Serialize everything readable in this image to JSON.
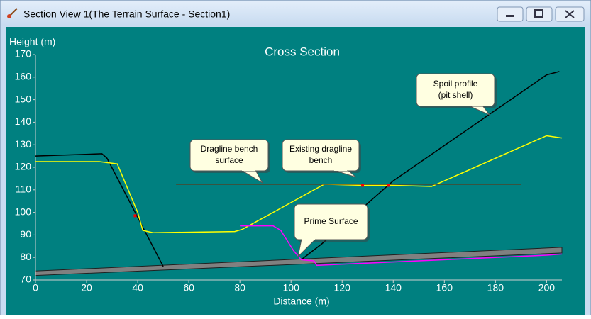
{
  "window": {
    "title": "Section View 1(The Terrain Surface - Section1)"
  },
  "chart_data": {
    "type": "line",
    "title": "Cross Section",
    "x_label": "Distance (m)",
    "y_label": "Height (m)",
    "xlim": [
      0,
      206
    ],
    "ylim": [
      70,
      170
    ],
    "xticks": [
      0,
      20,
      40,
      60,
      80,
      100,
      120,
      140,
      160,
      180,
      200
    ],
    "yticks": [
      70,
      80,
      90,
      100,
      110,
      120,
      130,
      140,
      150,
      160,
      170
    ],
    "band": {
      "color": "#808080",
      "x": [
        0,
        206
      ],
      "upper": [
        74,
        84.5
      ],
      "lower": [
        72,
        82
      ]
    },
    "series": [
      {
        "color": "#000000",
        "x": [
          0,
          26,
          28,
          50
        ],
        "values": [
          125,
          126,
          124,
          76
        ]
      },
      {
        "color": "#000000",
        "x": [
          104,
          112,
          140,
          200,
          205
        ],
        "values": [
          79,
          86,
          114,
          161,
          162.5
        ]
      },
      {
        "color": "#ffff00",
        "x": [
          0,
          25,
          32,
          40,
          42,
          46,
          78,
          81,
          113,
          128,
          140,
          155,
          200,
          206
        ],
        "values": [
          122.5,
          122.5,
          121.5,
          100,
          92,
          91,
          91.5,
          92.5,
          112.5,
          112,
          112,
          111.5,
          134,
          133
        ]
      },
      {
        "color": "#ff00ff",
        "x": [
          80,
          93,
          96,
          101,
          104,
          109,
          110,
          200,
          206
        ],
        "values": [
          94,
          94,
          92,
          83,
          79,
          78.5,
          76.5,
          81,
          81.5
        ]
      },
      {
        "color": "#5a3a1a",
        "x": [
          55,
          190
        ],
        "values": [
          112.5,
          112.5
        ]
      }
    ],
    "markers": {
      "color": "#ff0000",
      "x": [
        39,
        128,
        138
      ],
      "values": [
        98.5,
        112,
        112
      ]
    },
    "annotations": [
      {
        "lines": [
          "Dragline bench",
          "surface"
        ]
      },
      {
        "lines": [
          "Existing dragline",
          "bench"
        ]
      },
      {
        "lines": [
          "Spoil profile",
          "(pit shell)"
        ]
      },
      {
        "lines": [
          "Prime Surface"
        ]
      }
    ]
  }
}
